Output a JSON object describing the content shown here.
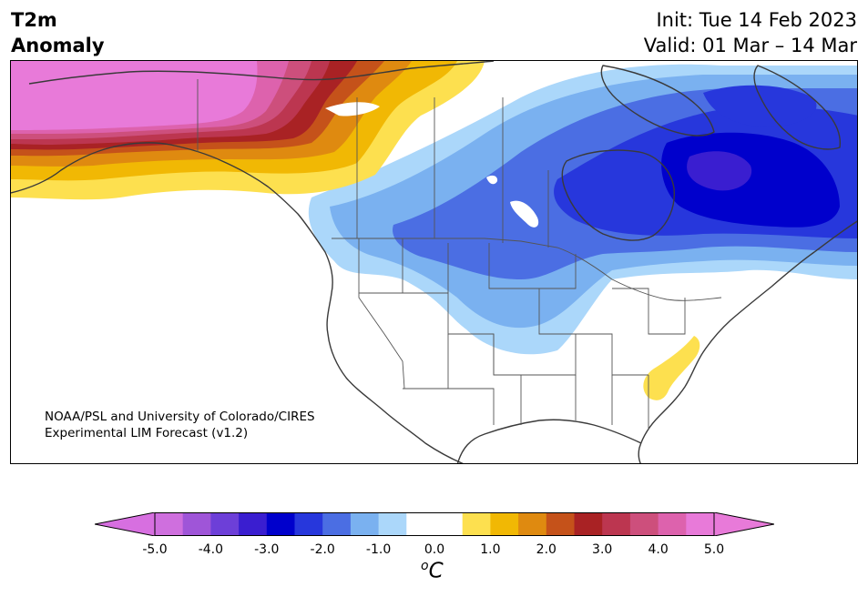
{
  "title": {
    "variable": "T2m",
    "subtitle": "Anomaly",
    "init": "Init: Tue 14 Feb 2023",
    "valid": "Valid: 01 Mar – 14 Mar"
  },
  "credit": {
    "line1": "NOAA/PSL and University of Colorado/CIRES",
    "line2": "Experimental LIM Forecast (v1.2)"
  },
  "colorbar": {
    "tick_labels": [
      "-5.0",
      "-4.0",
      "-3.0",
      "-2.0",
      "-1.0",
      "0.0",
      "1.0",
      "2.0",
      "3.0",
      "4.0",
      "5.0"
    ],
    "range": [
      -5.0,
      5.0
    ],
    "interval": 0.5,
    "unit_prefix": "o",
    "unit_main": "C",
    "under_color": "#d76fe0",
    "over_color": "#e87ad9",
    "colors": [
      "#cf6fde",
      "#9f55d8",
      "#6d3fd8",
      "#3a1ed0",
      "#0000cc",
      "#2737dc",
      "#4b6ee3",
      "#7ab1f0",
      "#abd7fa",
      "#ffffff",
      "#ffffff",
      "#fde04f",
      "#f1b804",
      "#df8a10",
      "#c5521a",
      "#a92224",
      "#bc3650",
      "#cd4f7c",
      "#dd62ad",
      "#e87ad9"
    ]
  },
  "map": {
    "region": "North America",
    "anomaly_regions": [
      {
        "name": "Alaska",
        "value_c": 5.0
      },
      {
        "name": "Yukon",
        "value_c": 3.5
      },
      {
        "name": "Northern Alberta / Northwest Territories",
        "value_c": 1.5
      },
      {
        "name": "Northern Great Plains",
        "value_c": -2.0
      },
      {
        "name": "Hudson Bay / Northern Quebec",
        "value_c": -3.0
      },
      {
        "name": "Southeast US coast",
        "value_c": 0.75
      }
    ]
  }
}
